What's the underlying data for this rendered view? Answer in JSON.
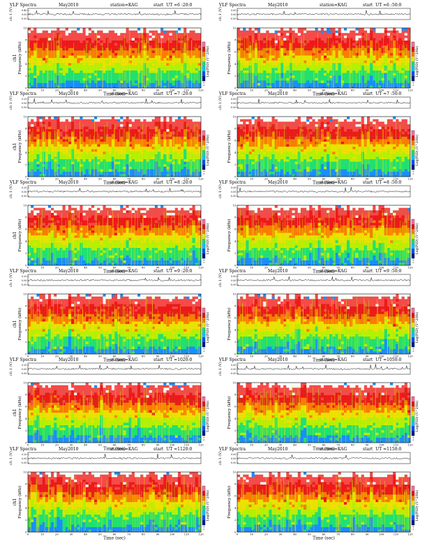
{
  "chart_data": [
    {
      "type": "heatmap",
      "title": "VLF Spectra",
      "date": "May2010",
      "station": "station=KAG",
      "start_ut": "start  UT =6 :20:0",
      "ch_label": "ch 1 (V)",
      "ch_ticks": [
        "0.40",
        "0.00",
        "-0.50"
      ],
      "ylabel": "Frequency (kHz)",
      "ylabel_ch": "ch1",
      "xlabel": "Time (sec)",
      "x_ticks": [
        0,
        10,
        20,
        30,
        40,
        50,
        60,
        70,
        80,
        90,
        100,
        110,
        120
      ],
      "y_ticks": [
        0,
        2,
        4,
        6,
        8,
        10
      ],
      "xlim": [
        0,
        120
      ],
      "ylim": [
        0,
        10
      ],
      "colorbar_label": "Log(PSD) (V^2/Hz)",
      "colorbar_ticks": [
        "-4",
        "-5"
      ]
    },
    {
      "type": "heatmap",
      "title": "VLF Spectra",
      "date": "May2010",
      "station": "station=KAG",
      "start_ut": "start  UT =6 :50:0",
      "ch_label": "ch 1 (V)",
      "ch_ticks": [
        "0.00",
        "0.00",
        "-0.50"
      ],
      "ylabel": "Frequency (kHz)",
      "ylabel_ch": "",
      "xlabel": "Time (sec)",
      "x_ticks": [
        0,
        10,
        20,
        30,
        40,
        50,
        60,
        70,
        80,
        90,
        100,
        110,
        120
      ],
      "y_ticks": [
        0,
        2,
        4,
        6,
        8,
        10
      ],
      "xlim": [
        0,
        120
      ],
      "ylim": [
        0,
        10
      ],
      "colorbar_label": "Log(PSD) (V^2/Hz)",
      "colorbar_ticks": [
        "-4",
        "-5"
      ]
    },
    {
      "type": "heatmap",
      "title": "VLF Spectra",
      "date": "May2010",
      "station": "station=KAG",
      "start_ut": "start  UT =7 :20:0",
      "ch_label": "ch 1 (V)",
      "ch_ticks": [
        "0.20",
        "0.00",
        "-0.50"
      ],
      "ylabel": "Frequency (kHz)",
      "ylabel_ch": "ch1",
      "xlabel": "Time (sec)",
      "x_ticks": [
        0,
        10,
        20,
        30,
        40,
        50,
        60,
        70,
        80,
        90,
        100,
        110,
        120
      ],
      "y_ticks": [
        0,
        2,
        4,
        6,
        8,
        10
      ],
      "xlim": [
        0,
        120
      ],
      "ylim": [
        0,
        10
      ],
      "colorbar_label": "Log(PSD) (V^2/Hz)",
      "colorbar_ticks": [
        "-4",
        "-5"
      ]
    },
    {
      "type": "heatmap",
      "title": "VLF Spectra",
      "date": "May2010",
      "station": "station=KAG",
      "start_ut": "start  UT =7 :50:0",
      "ch_label": "ch 1 (V)",
      "ch_ticks": [
        "0.00",
        "0.00",
        "-0.50"
      ],
      "ylabel": "Frequency (kHz)",
      "ylabel_ch": "",
      "xlabel": "Time (sec)",
      "x_ticks": [
        0,
        10,
        20,
        30,
        40,
        50,
        60,
        70,
        80,
        90,
        100,
        110,
        120
      ],
      "y_ticks": [
        0,
        2,
        4,
        6,
        8,
        10
      ],
      "xlim": [
        0,
        120
      ],
      "ylim": [
        0,
        10
      ],
      "colorbar_label": "Log(PSD) (V^2/Hz)",
      "colorbar_ticks": [
        "-4",
        "-5"
      ]
    },
    {
      "type": "heatmap",
      "title": "VLF Spectra",
      "date": "May2010",
      "station": "station=KAG",
      "start_ut": "start  UT =8 :20:0",
      "ch_label": "ch 1 (V)",
      "ch_ticks": [
        "0.20",
        "0.00",
        "-0.50"
      ],
      "ylabel": "Frequency (kHz)",
      "ylabel_ch": "ch1",
      "xlabel": "Time (sec)",
      "x_ticks": [
        0,
        10,
        20,
        30,
        40,
        50,
        60,
        70,
        80,
        90,
        100,
        110,
        120
      ],
      "y_ticks": [
        0,
        2,
        4,
        6,
        8,
        10
      ],
      "xlim": [
        0,
        120
      ],
      "ylim": [
        0,
        10
      ],
      "colorbar_label": "Log(PSD) (V^2/Hz)",
      "colorbar_ticks": [
        "-4",
        "-5"
      ]
    },
    {
      "type": "heatmap",
      "title": "VLF Spectra",
      "date": "May2010",
      "station": "station=KAG",
      "start_ut": "start  UT =8 :50:0",
      "ch_label": "ch 1 (V)",
      "ch_ticks": [
        "0.00",
        "0.00",
        "-0.50"
      ],
      "ylabel": "Frequency (kHz)",
      "ylabel_ch": "",
      "xlabel": "Time (sec)",
      "x_ticks": [
        0,
        10,
        20,
        30,
        40,
        50,
        60,
        70,
        80,
        90,
        100,
        110,
        120
      ],
      "y_ticks": [
        0,
        2,
        4,
        6,
        8,
        10
      ],
      "xlim": [
        0,
        120
      ],
      "ylim": [
        0,
        10
      ],
      "colorbar_label": "Log(PSD) (V^2/Hz)",
      "colorbar_ticks": [
        "-4",
        "-5"
      ]
    },
    {
      "type": "heatmap",
      "title": "VLF Spectra",
      "date": "May2010",
      "station": "station=KAG",
      "start_ut": "start  UT =9 :20:0",
      "ch_label": "ch 1 (V)",
      "ch_ticks": [
        "0.20",
        "0.00",
        "-0.50"
      ],
      "ylabel": "Frequency (kHz)",
      "ylabel_ch": "ch1",
      "xlabel": "Time (sec)",
      "x_ticks": [
        0,
        10,
        20,
        30,
        40,
        50,
        60,
        70,
        80,
        90,
        100,
        110,
        120
      ],
      "y_ticks": [
        0,
        2,
        4,
        6,
        8,
        10
      ],
      "xlim": [
        0,
        120
      ],
      "ylim": [
        0,
        10
      ],
      "colorbar_label": "Log(PSD) (V^2/Hz)",
      "colorbar_ticks": [
        "-4",
        "-5"
      ]
    },
    {
      "type": "heatmap",
      "title": "VLF Spectra",
      "date": "May2010",
      "station": "station=KAG",
      "start_ut": "start  UT =9 :50:0",
      "ch_label": "ch 1 (V)",
      "ch_ticks": [
        "0.00",
        "0.00",
        "-0.50"
      ],
      "ylabel": "Frequency (kHz)",
      "ylabel_ch": "",
      "xlabel": "Time (sec)",
      "x_ticks": [
        0,
        10,
        20,
        30,
        40,
        50,
        60,
        70,
        80,
        90,
        100,
        110,
        120
      ],
      "y_ticks": [
        0,
        2,
        4,
        6,
        8,
        10
      ],
      "xlim": [
        0,
        120
      ],
      "ylim": [
        0,
        10
      ],
      "colorbar_label": "Log(PSD) (V^2/Hz)",
      "colorbar_ticks": [
        "-4",
        "-5"
      ]
    },
    {
      "type": "heatmap",
      "title": "VLF Spectra",
      "date": "May2010",
      "station": "station=KAG",
      "start_ut": "start  UT =1020:0",
      "ch_label": "ch 1 (V)",
      "ch_ticks": [
        "0.20",
        "0.00",
        "-0.50"
      ],
      "ylabel": "Frequency (kHz)",
      "ylabel_ch": "ch1",
      "xlabel": "Time (sec)",
      "x_ticks": [
        0,
        10,
        20,
        30,
        40,
        50,
        60,
        70,
        80,
        90,
        100,
        110,
        120
      ],
      "y_ticks": [
        0,
        2,
        4,
        6,
        8,
        10
      ],
      "xlim": [
        0,
        120
      ],
      "ylim": [
        0,
        10
      ],
      "colorbar_label": "Log(PSD) (V^2/Hz)",
      "colorbar_ticks": [
        "-4",
        "-5"
      ]
    },
    {
      "type": "heatmap",
      "title": "VLF Spectra",
      "date": "May2010",
      "station": "station=KAG",
      "start_ut": "start  UT =1050:0",
      "ch_label": "ch 1 (V)",
      "ch_ticks": [
        "0.00",
        "0.00",
        "-0.50"
      ],
      "ylabel": "Frequency (kHz)",
      "ylabel_ch": "",
      "xlabel": "Time (sec)",
      "x_ticks": [
        0,
        10,
        20,
        30,
        40,
        50,
        60,
        70,
        80,
        90,
        100,
        110,
        120
      ],
      "y_ticks": [
        0,
        2,
        4,
        6,
        8,
        10
      ],
      "xlim": [
        0,
        120
      ],
      "ylim": [
        0,
        10
      ],
      "colorbar_label": "Log(PSD) (V^2/Hz)",
      "colorbar_ticks": [
        "-4",
        "-5"
      ]
    },
    {
      "type": "heatmap",
      "title": "VLF Spectra",
      "date": "May2010",
      "station": "station=KAG",
      "start_ut": "start  UT =1120:0",
      "ch_label": "ch 1 (V)",
      "ch_ticks": [
        "0.20",
        "0.00",
        "-0.50"
      ],
      "ylabel": "Frequency (kHz)",
      "ylabel_ch": "ch1",
      "xlabel": "Time (sec)",
      "x_ticks": [
        0,
        10,
        20,
        30,
        40,
        50,
        60,
        70,
        80,
        90,
        100,
        110,
        120
      ],
      "y_ticks": [
        0,
        2,
        4,
        6,
        8,
        10
      ],
      "xlim": [
        0,
        120
      ],
      "ylim": [
        0,
        10
      ],
      "colorbar_label": "Log(PSD) (V^2/Hz)",
      "colorbar_ticks": [
        "-4",
        "-5"
      ]
    },
    {
      "type": "heatmap",
      "title": "VLF Spectra",
      "date": "May2010",
      "station": "station=KAG",
      "start_ut": "start  UT =1150:0",
      "ch_label": "ch 1 (V)",
      "ch_ticks": [
        "0.00",
        "0.00",
        "-0.50"
      ],
      "ylabel": "Frequency (kHz)",
      "ylabel_ch": "",
      "xlabel": "Time (sec)",
      "x_ticks": [
        0,
        10,
        20,
        30,
        40,
        50,
        60,
        70,
        80,
        90,
        100,
        110,
        120
      ],
      "y_ticks": [
        0,
        2,
        4,
        6,
        8,
        10
      ],
      "xlim": [
        0,
        120
      ],
      "ylim": [
        0,
        10
      ],
      "colorbar_label": "Log(PSD) (V^2/Hz)",
      "colorbar_ticks": [
        "-4",
        "-5"
      ]
    }
  ],
  "colors": {
    "spectro_bands": [
      "#1a8cff",
      "#22e070",
      "#b8f000",
      "#f0e000",
      "#ff7a00",
      "#ee1818",
      "#f84848",
      "#ffffff"
    ],
    "colorbar": [
      "#001a8c",
      "#0050ff",
      "#00c8ff",
      "#22e070",
      "#e8f000",
      "#ff8000",
      "#e81818",
      "#ff6fa0"
    ],
    "timeseries": "#000000"
  }
}
